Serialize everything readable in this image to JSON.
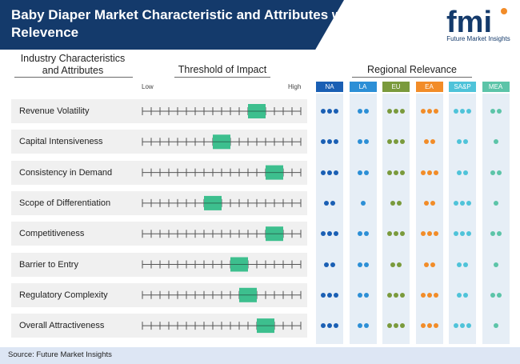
{
  "header": {
    "title": "Baby Diaper Market Characteristic and Attributes with Regional Relevence",
    "logo_text": "fmi",
    "logo_subtitle": "Future Market Insights"
  },
  "columns": {
    "characteristics": "Industry Characteristics and Attributes",
    "threshold": "Threshold of Impact",
    "regional": "Regional Relevance",
    "scale_low": "Low",
    "scale_high": "High"
  },
  "chart_data": {
    "type": "table",
    "scale": {
      "min": 1,
      "max": 10,
      "low_label": "Low",
      "high_label": "High"
    },
    "rows": [
      {
        "label": "Revenue Volatility",
        "impact_range": [
          7,
          8
        ],
        "regional_dots": [
          3,
          2,
          3,
          3,
          3,
          2
        ]
      },
      {
        "label": "Capital Intensiveness",
        "impact_range": [
          5,
          6
        ],
        "regional_dots": [
          3,
          2,
          3,
          2,
          2,
          1
        ]
      },
      {
        "label": "Consistency in Demand",
        "impact_range": [
          8,
          9
        ],
        "regional_dots": [
          3,
          2,
          3,
          3,
          2,
          2
        ]
      },
      {
        "label": "Scope of Differentiation",
        "impact_range": [
          4.5,
          5.5
        ],
        "regional_dots": [
          2,
          1,
          2,
          2,
          3,
          1
        ]
      },
      {
        "label": "Competitiveness",
        "impact_range": [
          8,
          9
        ],
        "regional_dots": [
          3,
          2,
          3,
          3,
          3,
          2
        ]
      },
      {
        "label": "Barrier to Entry",
        "impact_range": [
          6,
          7
        ],
        "regional_dots": [
          2,
          2,
          2,
          2,
          2,
          1
        ]
      },
      {
        "label": "Regulatory Complexity",
        "impact_range": [
          6.5,
          7.5
        ],
        "regional_dots": [
          3,
          2,
          3,
          3,
          2,
          2
        ]
      },
      {
        "label": "Overall Attractiveness",
        "impact_range": [
          7.5,
          8.5
        ],
        "regional_dots": [
          3,
          2,
          3,
          3,
          3,
          1
        ]
      }
    ],
    "regions": [
      {
        "name": "NA",
        "color": "#1a5fb4"
      },
      {
        "name": "LA",
        "color": "#2c8fd6"
      },
      {
        "name": "EU",
        "color": "#7a9a3c"
      },
      {
        "name": "EA",
        "color": "#f28c28"
      },
      {
        "name": "SA&P",
        "color": "#4fc3d9"
      },
      {
        "name": "MEA",
        "color": "#5cc4a8"
      }
    ],
    "impact_color": "#3dbf8e"
  },
  "source": "Source: Future Market Insights"
}
